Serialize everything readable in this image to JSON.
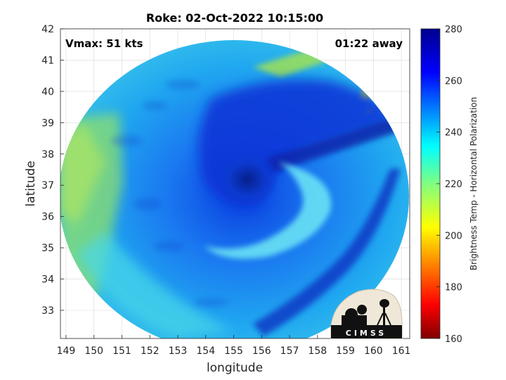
{
  "title": "Roke: 02-Oct-2022 10:15:00",
  "annotations": {
    "vmax": "Vmax: 51 kts",
    "away": "01:22 away"
  },
  "xaxis": {
    "label": "longitude",
    "range": [
      148.8,
      161.3
    ],
    "ticks": [
      149,
      150,
      151,
      152,
      153,
      154,
      155,
      156,
      157,
      158,
      159,
      160,
      161
    ]
  },
  "yaxis": {
    "label": "latitude",
    "range": [
      32.1,
      42
    ],
    "ticks": [
      33,
      34,
      35,
      36,
      37,
      38,
      39,
      40,
      41,
      42
    ]
  },
  "colorbar": {
    "label": "Brightness Temp - Horizontal Polarization",
    "range": [
      160,
      280
    ],
    "ticks": [
      160,
      180,
      200,
      220,
      240,
      260,
      280
    ],
    "colormap": "jet",
    "colors": [
      "#7f0000",
      "#ff0000",
      "#ff8000",
      "#ffff00",
      "#80ff80",
      "#00ffff",
      "#0080ff",
      "#0000ff",
      "#00008f"
    ]
  },
  "map": {
    "swath_center": [
      155.0,
      37.0
    ],
    "eye_center": [
      155.3,
      37.1
    ],
    "background_color": "#ffffff",
    "grid": true
  },
  "logo": {
    "text": "CIMSS"
  }
}
